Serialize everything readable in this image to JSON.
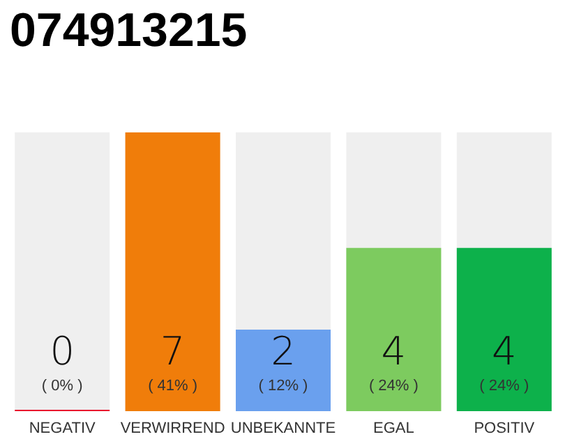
{
  "chart_data": {
    "type": "bar",
    "title": "074913215",
    "categories": [
      "NEGATIV",
      "VERWIRREND",
      "UNBEKANNTE",
      "EGAL",
      "POSITIV"
    ],
    "values": [
      0,
      41,
      12,
      24,
      24
    ],
    "colors": [
      "#e8112d",
      "#f07d0a",
      "#6aa0ee",
      "#7dcb5f",
      "#0db14b"
    ],
    "value_labels": [
      "0\n( 0% )",
      "7\n( 41% )",
      "2\n( 12% )",
      "4\n( 24% )",
      "4\n( 24% )"
    ]
  }
}
